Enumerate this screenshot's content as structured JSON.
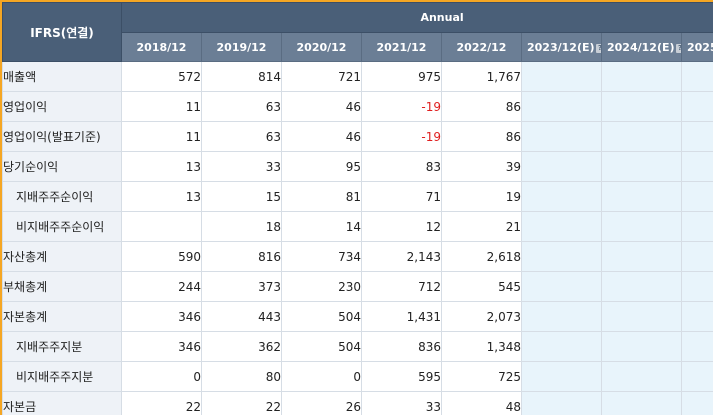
{
  "header": {
    "corner_label": "IFRS(연결)",
    "group_label": "Annual",
    "years": [
      {
        "label": "2018/12",
        "estimate": false
      },
      {
        "label": "2019/12",
        "estimate": false
      },
      {
        "label": "2020/12",
        "estimate": false
      },
      {
        "label": "2021/12",
        "estimate": false
      },
      {
        "label": "2022/12",
        "estimate": false
      },
      {
        "label": "2023/12(E)",
        "estimate": true
      },
      {
        "label": "2024/12(E)",
        "estimate": true
      },
      {
        "label": "2025",
        "estimate": true
      }
    ],
    "help_icon": "question-mark-icon"
  },
  "rows": [
    {
      "label": "매출액",
      "indent": false,
      "values": [
        "572",
        "814",
        "721",
        "975",
        "1,767"
      ]
    },
    {
      "label": "영업이익",
      "indent": false,
      "values": [
        "11",
        "63",
        "46",
        "-19",
        "86"
      ]
    },
    {
      "label": "영업이익(발표기준)",
      "indent": false,
      "values": [
        "11",
        "63",
        "46",
        "-19",
        "86"
      ]
    },
    {
      "label": "당기순이익",
      "indent": false,
      "values": [
        "13",
        "33",
        "95",
        "83",
        "39"
      ]
    },
    {
      "label": "지배주주순이익",
      "indent": true,
      "values": [
        "13",
        "15",
        "81",
        "71",
        "19"
      ]
    },
    {
      "label": "비지배주주순이익",
      "indent": true,
      "values": [
        "",
        "18",
        "14",
        "12",
        "21"
      ]
    },
    {
      "label": "자산총계",
      "indent": false,
      "values": [
        "590",
        "816",
        "734",
        "2,143",
        "2,618"
      ]
    },
    {
      "label": "부채총계",
      "indent": false,
      "values": [
        "244",
        "373",
        "230",
        "712",
        "545"
      ]
    },
    {
      "label": "자본총계",
      "indent": false,
      "values": [
        "346",
        "443",
        "504",
        "1,431",
        "2,073"
      ]
    },
    {
      "label": "지배주주지분",
      "indent": true,
      "values": [
        "346",
        "362",
        "504",
        "836",
        "1,348"
      ]
    },
    {
      "label": "비지배주주지분",
      "indent": true,
      "values": [
        "0",
        "80",
        "0",
        "595",
        "725"
      ]
    },
    {
      "label": "자본금",
      "indent": false,
      "values": [
        "22",
        "22",
        "26",
        "33",
        "48"
      ]
    }
  ],
  "colors": {
    "header_dark": "#4a5f78",
    "header_light": "#6b7e95",
    "label_bg": "#eef2f7",
    "estimate_bg": "#e8f4fb",
    "negative": "#e02020",
    "frame": "#f5a623"
  }
}
